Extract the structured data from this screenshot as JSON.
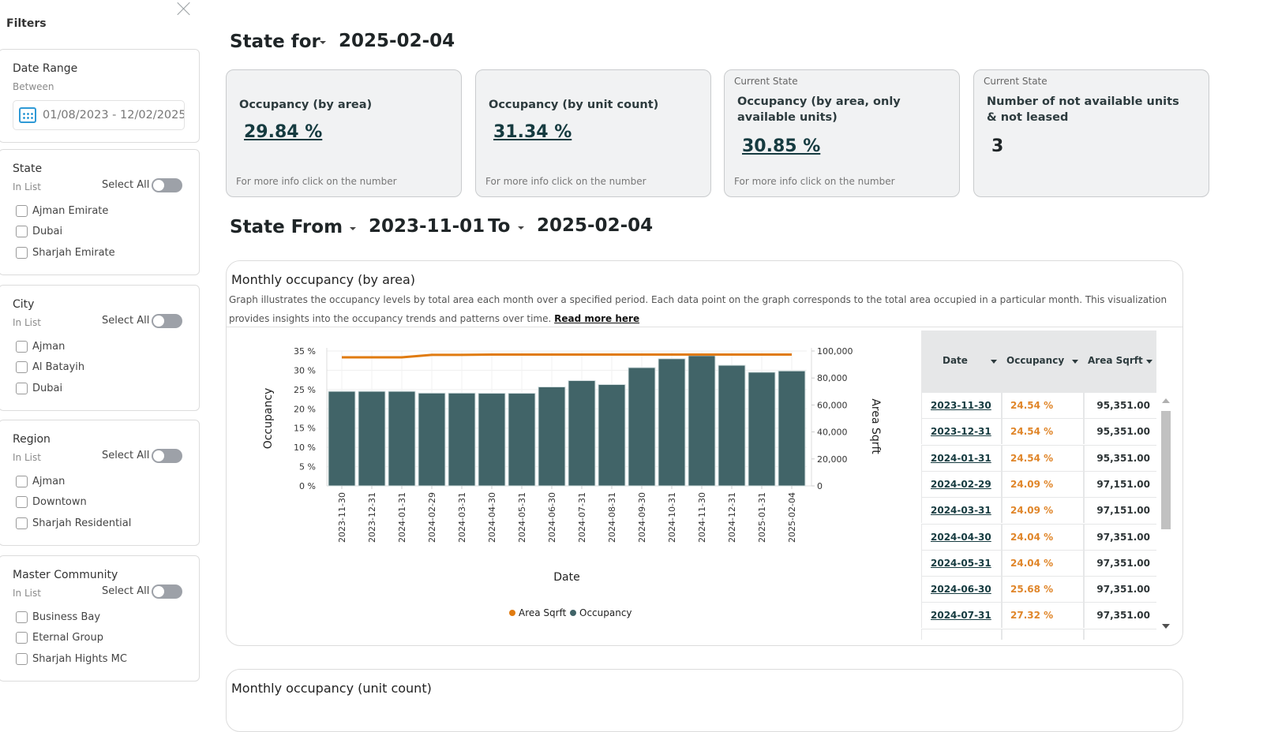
{
  "sidebar": {
    "title": "Filters",
    "close_icon": "close-icon",
    "date_range": {
      "title": "Date Range",
      "subtitle": "Between",
      "value": "01/08/2023 - 12/02/2025",
      "icon": "calendar-icon"
    },
    "groups": [
      {
        "title": "State",
        "subtitle": "In List",
        "select_all": "Select All",
        "select_all_on": false,
        "options": [
          "Ajman Emirate",
          "Dubai",
          "Sharjah Emirate"
        ]
      },
      {
        "title": "City",
        "subtitle": "In List",
        "select_all": "Select All",
        "select_all_on": false,
        "options": [
          "Ajman",
          "Al Batayih",
          "Dubai"
        ]
      },
      {
        "title": "Region",
        "subtitle": "In List",
        "select_all": "Select All",
        "select_all_on": false,
        "options": [
          "Ajman",
          "Downtown",
          "Sharjah Residential"
        ]
      },
      {
        "title": "Master Community",
        "subtitle": "In List",
        "select_all": "Select All",
        "select_all_on": false,
        "options": [
          "Business Bay",
          "Eternal Group",
          "Sharjah Hights MC"
        ]
      }
    ]
  },
  "header": {
    "state_for_label": "State for",
    "state_for_value": "2025-02-04",
    "state_from_label": "State From",
    "state_from_value": "2023-11-01",
    "to_label": "To",
    "to_value": "2025-02-04"
  },
  "kpis": [
    {
      "label": "",
      "title": "Occupancy (by area)",
      "value": "29.84 %",
      "footer": "For more info click on the number"
    },
    {
      "label": "",
      "title": "Occupancy (by unit count)",
      "value": "31.34 %",
      "footer": "For more info click on the number"
    },
    {
      "label": "Current State",
      "title": "Occupancy (by area, only available units)",
      "value": "30.85 %",
      "footer": "For more info click on the number"
    },
    {
      "label": "Current State",
      "title": "Number of not available units & not leased",
      "value": "3",
      "footer": ""
    }
  ],
  "panel": {
    "title": "Monthly occupancy (by area)",
    "description": "Graph illustrates the occupancy levels by total area each month over a specified period. Each data point on the graph corresponds to the total area occupied in a particular month. This visualization provides insights into the occupancy trends and patterns over time.",
    "read_more": "Read more here"
  },
  "chart_data": {
    "type": "bar",
    "title": "Monthly occupancy (by area)",
    "xlabel": "Date",
    "ylabel": "Occupancy",
    "y2label": "Area Sqrft",
    "ylim": [
      0,
      35
    ],
    "y2lim": [
      0,
      100000
    ],
    "yticks": [
      "0 %",
      "5 %",
      "10 %",
      "15 %",
      "20 %",
      "25 %",
      "30 %",
      "35 %"
    ],
    "y2ticks": [
      "0",
      "20,000",
      "40,000",
      "60,000",
      "80,000",
      "100,000"
    ],
    "categories": [
      "2023-11-30",
      "2023-12-31",
      "2024-01-31",
      "2024-02-29",
      "2024-03-31",
      "2024-04-30",
      "2024-05-31",
      "2024-06-30",
      "2024-07-31",
      "2024-08-31",
      "2024-09-30",
      "2024-10-31",
      "2024-11-30",
      "2024-12-31",
      "2025-01-31",
      "2025-02-04"
    ],
    "series": [
      {
        "name": "Occupancy",
        "type": "bar",
        "axis": "left",
        "color": "#416468",
        "values": [
          24.54,
          24.54,
          24.54,
          24.09,
          24.09,
          24.04,
          24.04,
          25.68,
          27.32,
          26.3,
          30.7,
          33.0,
          33.8,
          31.3,
          29.5,
          29.84
        ]
      },
      {
        "name": "Area Sqrft",
        "type": "line",
        "axis": "right",
        "color": "#e07b10",
        "values": [
          95351,
          95351,
          95351,
          97151,
          97151,
          97351,
          97351,
          97351,
          97351,
          97351,
          97351,
          97351,
          97351,
          97351,
          97351,
          97351
        ]
      }
    ],
    "legend": [
      "Area Sqrft",
      "Occupancy"
    ],
    "legend_position": "bottom",
    "grid": true
  },
  "table": {
    "columns": [
      "Date",
      "Occupancy",
      "Area Sqrft"
    ],
    "rows": [
      [
        "2023-11-30",
        "24.54 %",
        "95,351.00"
      ],
      [
        "2023-12-31",
        "24.54 %",
        "95,351.00"
      ],
      [
        "2024-01-31",
        "24.54 %",
        "95,351.00"
      ],
      [
        "2024-02-29",
        "24.09 %",
        "97,151.00"
      ],
      [
        "2024-03-31",
        "24.09 %",
        "97,151.00"
      ],
      [
        "2024-04-30",
        "24.04 %",
        "97,351.00"
      ],
      [
        "2024-05-31",
        "24.04 %",
        "97,351.00"
      ],
      [
        "2024-06-30",
        "25.68 %",
        "97,351.00"
      ],
      [
        "2024-07-31",
        "27.32 %",
        "97,351.00"
      ]
    ]
  },
  "panel2": {
    "title": "Monthly occupancy (unit count)"
  }
}
